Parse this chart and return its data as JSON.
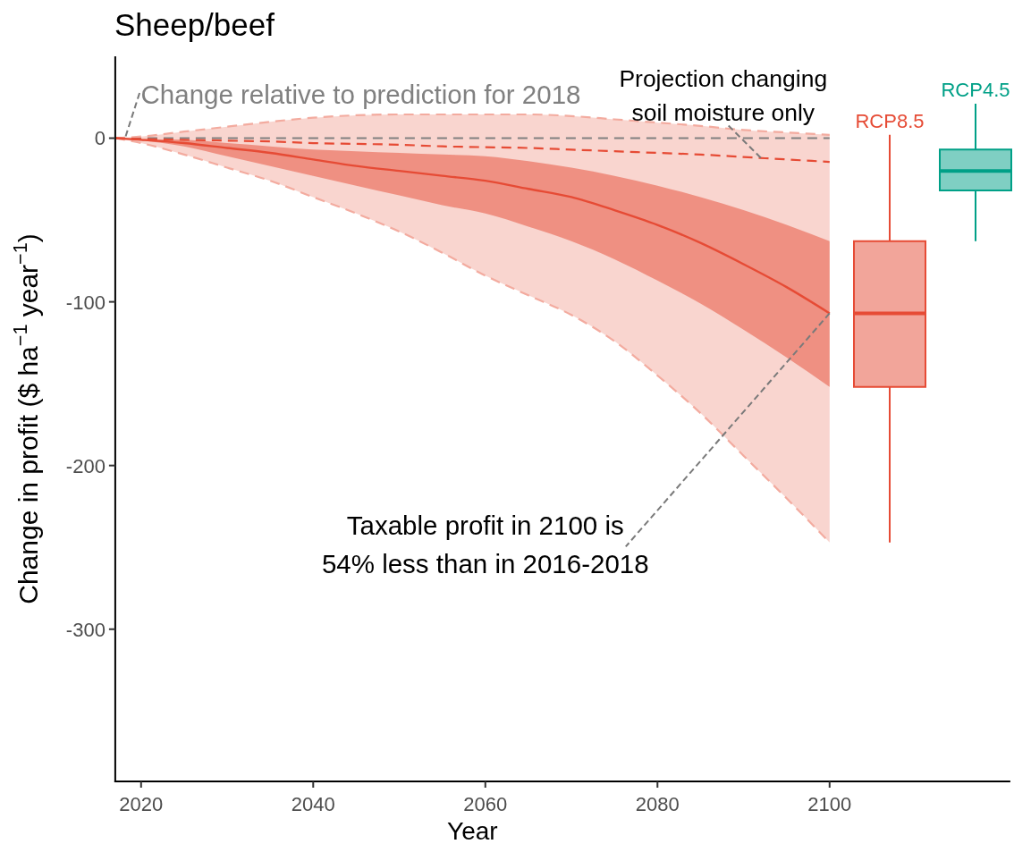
{
  "chart_data": {
    "type": "line",
    "title": "Sheep/beef",
    "xlabel": "Year",
    "ylabel": "Change in profit ($ ha$^{−1}$ year$^{−1}$)",
    "xlim": [
      2017,
      2121
    ],
    "xticks": [
      2020,
      2040,
      2060,
      2080,
      2100
    ],
    "ylim": [
      -393,
      50
    ],
    "yticks": [
      -300,
      -200,
      -100,
      0
    ],
    "x": [
      2017,
      2020,
      2025,
      2030,
      2035,
      2040,
      2045,
      2050,
      2055,
      2060,
      2065,
      2070,
      2075,
      2080,
      2085,
      2090,
      2095,
      2100
    ],
    "series": [
      {
        "type": "line",
        "color": "#f3ab9f",
        "line_style": "dashed",
        "values": [
          0,
          1,
          4,
          7,
          10,
          12.5,
          14,
          14.5,
          14.5,
          14.5,
          14.5,
          13.5,
          11.5,
          9.5,
          7.5,
          5,
          3.5,
          2
        ],
        "lower": [
          0,
          -3,
          -10,
          -18,
          -26,
          -36,
          -46,
          -57,
          -70,
          -84,
          -96,
          -108,
          -124,
          -145,
          -168,
          -194,
          -220,
          -247
        ],
        "upper": [
          0,
          1,
          4,
          7,
          10,
          12.5,
          14,
          14.5,
          14.5,
          14.5,
          14.5,
          13.5,
          11.5,
          9.5,
          7.5,
          5,
          3.5,
          2
        ]
      },
      {
        "type": "line",
        "color": "#f3ab9f",
        "line_style": "dashed",
        "values": [
          0,
          -3,
          -10,
          -18,
          -26,
          -36,
          -46,
          -57,
          -70,
          -84,
          -96,
          -108,
          -124,
          -145,
          -168,
          -194,
          -220,
          -247
        ]
      },
      {
        "type": "line",
        "color": "#e64b35",
        "values": [
          0,
          -1,
          -3,
          -6,
          -9,
          -13,
          -17,
          -20,
          -23,
          -26,
          -31,
          -36,
          -44,
          -53,
          -64,
          -77,
          -91,
          -107
        ],
        "lower": [
          0,
          -1.5,
          -5,
          -11,
          -17,
          -23,
          -29,
          -35,
          -41,
          -46,
          -54,
          -63,
          -74,
          -87,
          -101,
          -117,
          -134,
          -152
        ],
        "upper": [
          0,
          -0.5,
          -1,
          -3,
          -5,
          -7,
          -8,
          -9,
          -10,
          -11,
          -14,
          -18,
          -23,
          -29,
          -36,
          -44,
          -53,
          -63
        ]
      },
      {
        "type": "line",
        "color": "#e64b35",
        "line_style": "dashed",
        "values": [
          0,
          -0.5,
          -1,
          -1.5,
          -2,
          -3,
          -3.5,
          -4,
          -5,
          -5.5,
          -6,
          -7,
          -8,
          -9,
          -10,
          -11.5,
          -13,
          -14.5
        ]
      },
      {
        "type": "box",
        "name": "RCP8.5",
        "color": "#e64b35",
        "x": [
          2107
        ],
        "boxes": [
          {
            "low": -247,
            "q1": -152,
            "median": -107,
            "q3": -63,
            "high": 2
          }
        ]
      },
      {
        "type": "box",
        "name": "RCP4.5",
        "color": "#00a087",
        "x": [
          2117
        ],
        "boxes": [
          {
            "low": -63,
            "q1": -32,
            "median": -20,
            "q3": -7,
            "high": 21
          }
        ]
      }
    ],
    "ref_lines": [
      {
        "axis": "y",
        "value": 0,
        "color": "#808080",
        "line_style": "dashed"
      }
    ],
    "annotations": [
      {
        "text": "Change relative to prediction for 2018",
        "x": 2018,
        "y": 0
      },
      {
        "text": "Projection changing\nsoil moisture only",
        "x": 2092,
        "y": -12
      },
      {
        "text": "Taxable profit in 2100 is\n54% less than in 2016-2018",
        "x": 2100,
        "y": -107
      }
    ]
  }
}
